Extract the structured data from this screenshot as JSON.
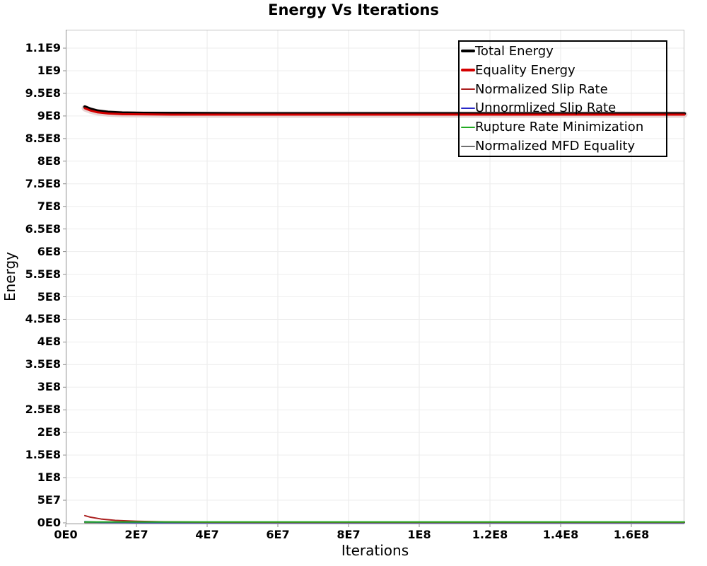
{
  "chart_data": {
    "type": "line",
    "title": "Energy Vs Iterations",
    "xlabel": "Iterations",
    "ylabel": "Energy",
    "xlim": [
      0,
      175000000
    ],
    "ylim": [
      0,
      1090000000
    ],
    "grid": true,
    "legend_position": "inside-top-right",
    "x_ticks": [
      {
        "v": 0,
        "label": "0E0"
      },
      {
        "v": 20000000,
        "label": "2E7"
      },
      {
        "v": 40000000,
        "label": "4E7"
      },
      {
        "v": 60000000,
        "label": "6E7"
      },
      {
        "v": 80000000,
        "label": "8E7"
      },
      {
        "v": 100000000,
        "label": "1E8"
      },
      {
        "v": 120000000,
        "label": "1.2E8"
      },
      {
        "v": 140000000,
        "label": "1.4E8"
      },
      {
        "v": 160000000,
        "label": "1.6E8"
      }
    ],
    "y_ticks": [
      {
        "v": 0,
        "label": "0E0"
      },
      {
        "v": 50000000,
        "label": "5E7"
      },
      {
        "v": 100000000,
        "label": "1E8"
      },
      {
        "v": 150000000,
        "label": "1.5E8"
      },
      {
        "v": 200000000,
        "label": "2E8"
      },
      {
        "v": 250000000,
        "label": "2.5E8"
      },
      {
        "v": 300000000,
        "label": "3E8"
      },
      {
        "v": 350000000,
        "label": "3.5E8"
      },
      {
        "v": 400000000,
        "label": "4E8"
      },
      {
        "v": 450000000,
        "label": "4.5E8"
      },
      {
        "v": 500000000,
        "label": "5E8"
      },
      {
        "v": 550000000,
        "label": "5.5E8"
      },
      {
        "v": 600000000,
        "label": "6E8"
      },
      {
        "v": 650000000,
        "label": "6.5E8"
      },
      {
        "v": 700000000,
        "label": "7E8"
      },
      {
        "v": 750000000,
        "label": "7.5E8"
      },
      {
        "v": 800000000,
        "label": "8E8"
      },
      {
        "v": 850000000,
        "label": "8.5E8"
      },
      {
        "v": 900000000,
        "label": "9E8"
      },
      {
        "v": 950000000,
        "label": "9.5E8"
      },
      {
        "v": 1000000000,
        "label": "1E9"
      },
      {
        "v": 1050000000,
        "label": "1.1E9"
      }
    ],
    "series": [
      {
        "name": "Total Energy",
        "color": "#000000",
        "line_width": 4,
        "x": [
          5400000,
          7000000,
          9000000,
          12000000,
          16000000,
          22000000,
          30000000,
          50000000,
          100000000,
          175000000
        ],
        "y": [
          920000000,
          915000000,
          911000000,
          908000000,
          906500000,
          905800000,
          905500000,
          905000000,
          905000000,
          905000000
        ]
      },
      {
        "name": "Equality Energy",
        "color": "#d40000",
        "line_width": 4,
        "x": [
          5400000,
          7000000,
          9000000,
          12000000,
          16000000,
          22000000,
          30000000,
          50000000,
          100000000,
          175000000
        ],
        "y": [
          917000000,
          912000000,
          908000000,
          905500000,
          904000000,
          903500000,
          903000000,
          903000000,
          903000000,
          903000000
        ]
      },
      {
        "name": "Normalized Slip Rate",
        "color": "#ab2020",
        "line_width": 2,
        "x": [
          5400000,
          7000000,
          10000000,
          14000000,
          20000000,
          28000000,
          40000000,
          60000000,
          175000000
        ],
        "y": [
          16000000,
          12500000,
          8500000,
          5500000,
          3500000,
          2200000,
          1600000,
          1400000,
          1300000
        ]
      },
      {
        "name": "Unnormlized Slip Rate",
        "color": "#2828c8",
        "line_width": 2,
        "x": [
          5400000,
          10000000,
          20000000,
          175000000
        ],
        "y": [
          2500000,
          1200000,
          600000,
          500000
        ]
      },
      {
        "name": "Rupture Rate Minimization",
        "color": "#22aa22",
        "line_width": 2,
        "x": [
          5400000,
          175000000
        ],
        "y": [
          2000000,
          2000000
        ]
      },
      {
        "name": "Normalized MFD Equality",
        "color": "#707070",
        "line_width": 2,
        "x": [
          5400000,
          175000000
        ],
        "y": [
          500000,
          500000
        ]
      }
    ]
  }
}
